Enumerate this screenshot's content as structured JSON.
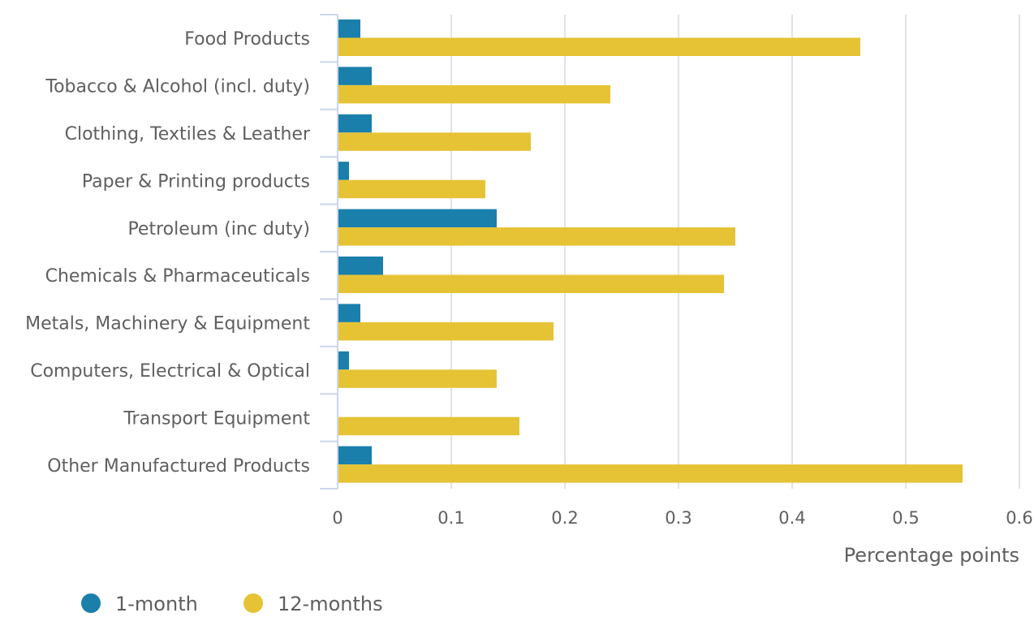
{
  "chart_data": {
    "type": "bar",
    "orientation": "horizontal",
    "categories": [
      "Food Products",
      "Tobacco & Alcohol (incl. duty)",
      "Clothing, Textiles & Leather",
      "Paper & Printing products",
      "Petroleum (inc duty)",
      "Chemicals & Pharmaceuticals",
      "Metals, Machinery & Equipment",
      "Computers, Electrical & Optical",
      "Transport Equipment",
      "Other Manufactured Products"
    ],
    "series": [
      {
        "name": "1-month",
        "color": "#1a7fab",
        "values": [
          0.02,
          0.03,
          0.03,
          0.01,
          0.14,
          0.04,
          0.02,
          0.01,
          0.0,
          0.03
        ]
      },
      {
        "name": "12-months",
        "color": "#e6c335",
        "values": [
          0.46,
          0.24,
          0.17,
          0.13,
          0.35,
          0.34,
          0.19,
          0.14,
          0.16,
          0.55
        ]
      }
    ],
    "xlabel": "Percentage points",
    "ylabel": "",
    "xlim": [
      0,
      0.6
    ],
    "xticks": [
      "0",
      "0.1",
      "0.2",
      "0.3",
      "0.4",
      "0.5",
      "0.6"
    ],
    "grid": true,
    "legend_position": "bottom-left"
  }
}
